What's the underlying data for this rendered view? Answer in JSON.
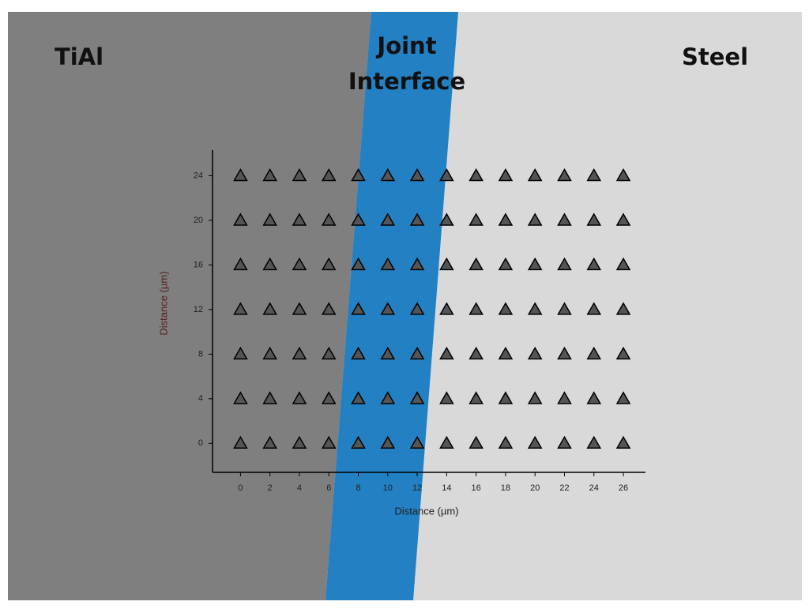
{
  "chart_data": {
    "type": "scatter",
    "annotations": [
      "TiAl",
      "Joint Interface",
      "Steel"
    ],
    "x_label": "Distance (µm)",
    "y_label": "Distance (µm)",
    "series": [
      {
        "name": null,
        "color": "#555555",
        "marker": "triangle",
        "x": [
          0,
          2,
          4,
          6,
          8,
          10,
          12,
          14,
          16,
          18,
          20,
          22,
          24,
          26,
          0,
          2,
          4,
          6,
          8,
          10,
          12,
          14,
          16,
          18,
          20,
          22,
          24,
          26,
          0,
          2,
          4,
          6,
          8,
          10,
          12,
          14,
          16,
          18,
          20,
          22,
          24,
          26,
          0,
          2,
          4,
          6,
          8,
          10,
          12,
          14,
          16,
          18,
          20,
          22,
          24,
          26,
          0,
          2,
          4,
          6,
          8,
          10,
          12,
          14,
          16,
          18,
          20,
          22,
          24,
          26,
          0,
          2,
          4,
          6,
          8,
          10,
          12,
          14,
          16,
          18,
          20,
          22,
          24,
          26,
          0,
          2,
          4,
          6,
          8,
          10,
          12,
          14,
          16,
          18,
          20,
          22,
          24,
          26
        ],
        "values": [
          0,
          0,
          0,
          0,
          0,
          0,
          0,
          0,
          0,
          0,
          0,
          0,
          0,
          0,
          4,
          4,
          4,
          4,
          4,
          4,
          4,
          4,
          4,
          4,
          4,
          4,
          4,
          4,
          8,
          8,
          8,
          8,
          8,
          8,
          8,
          8,
          8,
          8,
          8,
          8,
          8,
          8,
          12,
          12,
          12,
          12,
          12,
          12,
          12,
          12,
          12,
          12,
          12,
          12,
          12,
          12,
          16,
          16,
          16,
          16,
          16,
          16,
          16,
          16,
          16,
          16,
          16,
          16,
          16,
          16,
          20,
          20,
          20,
          20,
          20,
          20,
          20,
          20,
          20,
          20,
          20,
          20,
          20,
          20,
          24,
          24,
          24,
          24,
          24,
          24,
          24,
          24,
          24,
          24,
          24,
          24,
          24,
          24
        ]
      }
    ],
    "xlim": [
      -1.9,
      27.5
    ],
    "ylim": [
      -2.6,
      26.3
    ],
    "xticks": [
      0,
      2,
      4,
      6,
      8,
      10,
      12,
      14,
      16,
      18,
      20,
      22,
      24,
      26
    ],
    "yticks": [
      0,
      4,
      8,
      12,
      16,
      20,
      24
    ]
  }
}
